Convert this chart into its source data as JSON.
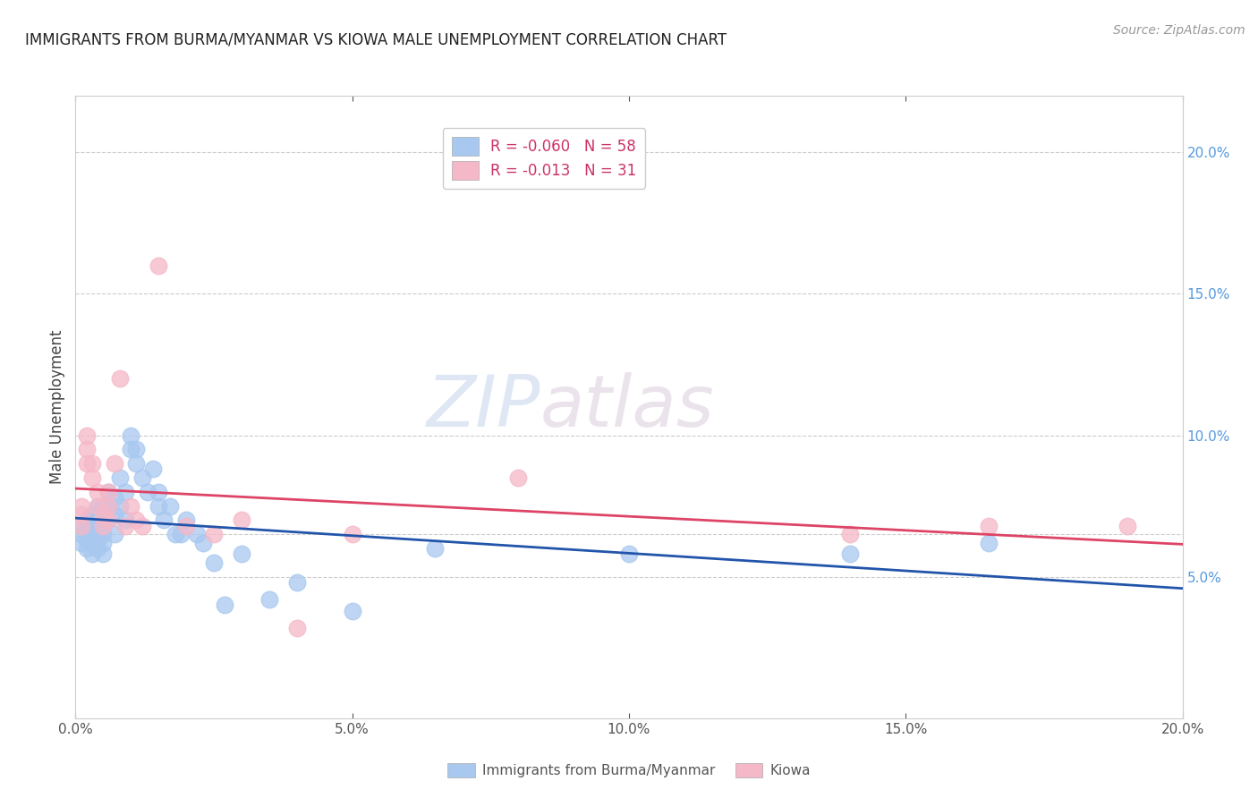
{
  "title": "IMMIGRANTS FROM BURMA/MYANMAR VS KIOWA MALE UNEMPLOYMENT CORRELATION CHART",
  "source": "Source: ZipAtlas.com",
  "ylabel": "Male Unemployment",
  "legend_label_blue": "Immigrants from Burma/Myanmar",
  "legend_label_pink": "Kiowa",
  "R_blue": -0.06,
  "N_blue": 58,
  "R_pink": -0.013,
  "N_pink": 31,
  "xlim": [
    0.0,
    0.2
  ],
  "ylim": [
    0.0,
    0.22
  ],
  "right_yticks": [
    0.05,
    0.1,
    0.15,
    0.2
  ],
  "right_yticklabels": [
    "5.0%",
    "10.0%",
    "15.0%",
    "20.0%"
  ],
  "xticks": [
    0.0,
    0.05,
    0.1,
    0.15,
    0.2
  ],
  "xticklabels": [
    "0.0%",
    "5.0%",
    "10.0%",
    "15.0%",
    "20.0%"
  ],
  "color_blue": "#A8C8F0",
  "color_pink": "#F5B8C8",
  "line_color_blue": "#2255AA",
  "line_color_pink": "#DD4466",
  "watermark_zip": "ZIP",
  "watermark_atlas": "atlas",
  "blue_x": [
    0.001,
    0.001,
    0.001,
    0.002,
    0.002,
    0.002,
    0.002,
    0.003,
    0.003,
    0.003,
    0.003,
    0.003,
    0.004,
    0.004,
    0.004,
    0.004,
    0.004,
    0.005,
    0.005,
    0.005,
    0.005,
    0.005,
    0.006,
    0.006,
    0.006,
    0.007,
    0.007,
    0.007,
    0.008,
    0.008,
    0.009,
    0.009,
    0.01,
    0.01,
    0.011,
    0.011,
    0.012,
    0.013,
    0.014,
    0.015,
    0.015,
    0.016,
    0.017,
    0.018,
    0.019,
    0.02,
    0.022,
    0.023,
    0.025,
    0.027,
    0.03,
    0.035,
    0.04,
    0.05,
    0.065,
    0.1,
    0.14,
    0.165
  ],
  "blue_y": [
    0.062,
    0.065,
    0.068,
    0.06,
    0.063,
    0.066,
    0.07,
    0.058,
    0.062,
    0.065,
    0.068,
    0.072,
    0.06,
    0.063,
    0.066,
    0.07,
    0.075,
    0.058,
    0.062,
    0.065,
    0.068,
    0.075,
    0.07,
    0.075,
    0.08,
    0.065,
    0.072,
    0.078,
    0.075,
    0.085,
    0.07,
    0.08,
    0.095,
    0.1,
    0.09,
    0.095,
    0.085,
    0.08,
    0.088,
    0.075,
    0.08,
    0.07,
    0.075,
    0.065,
    0.065,
    0.07,
    0.065,
    0.062,
    0.055,
    0.04,
    0.058,
    0.042,
    0.048,
    0.038,
    0.06,
    0.058,
    0.058,
    0.062
  ],
  "pink_x": [
    0.001,
    0.001,
    0.001,
    0.002,
    0.002,
    0.002,
    0.003,
    0.003,
    0.004,
    0.004,
    0.005,
    0.005,
    0.006,
    0.006,
    0.006,
    0.007,
    0.008,
    0.009,
    0.01,
    0.011,
    0.012,
    0.015,
    0.02,
    0.025,
    0.03,
    0.04,
    0.05,
    0.08,
    0.14,
    0.165,
    0.19
  ],
  "pink_y": [
    0.068,
    0.072,
    0.075,
    0.09,
    0.095,
    0.1,
    0.085,
    0.09,
    0.075,
    0.08,
    0.068,
    0.072,
    0.07,
    0.075,
    0.08,
    0.09,
    0.12,
    0.068,
    0.075,
    0.07,
    0.068,
    0.16,
    0.068,
    0.065,
    0.07,
    0.032,
    0.065,
    0.085,
    0.065,
    0.068,
    0.068
  ]
}
